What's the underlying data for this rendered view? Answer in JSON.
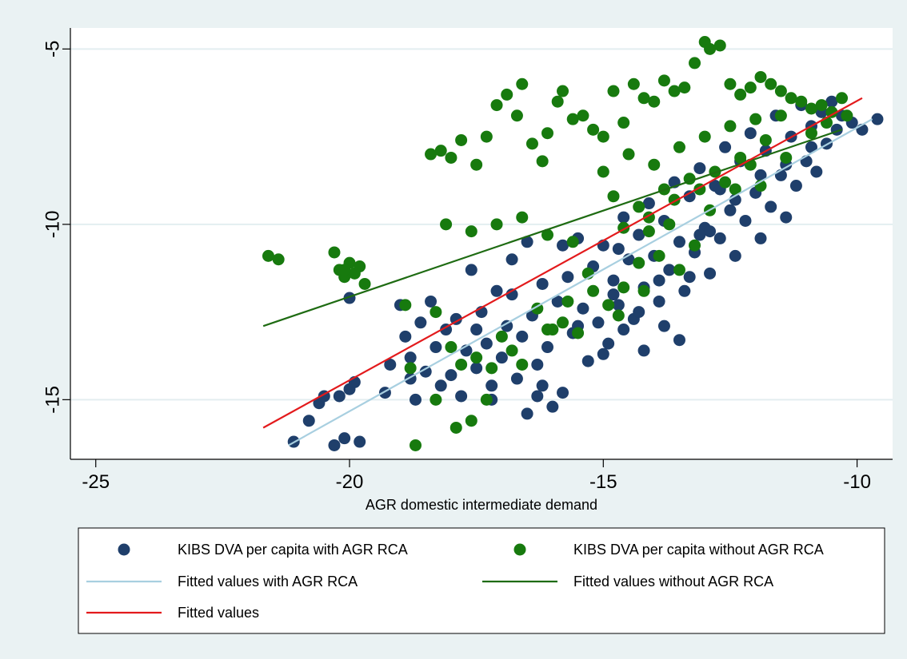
{
  "chart_data": {
    "type": "scatter",
    "title": "",
    "xlabel": "AGR domestic intermediate demand",
    "ylabel": "",
    "xlim": [
      -25.5,
      -9.3
    ],
    "ylim": [
      -16.7,
      -4.4
    ],
    "xticks": [
      -25,
      -20,
      -15,
      -10
    ],
    "yticks": [
      -5,
      -10,
      -15
    ],
    "x_tick_labels": [
      "-25",
      "-20",
      "-15",
      "-10"
    ],
    "y_tick_labels": [
      "-5",
      "-10",
      "-15"
    ],
    "grid": "horizontal",
    "legend_position": "bottom",
    "colors": {
      "with_rca": "#1f3f6b",
      "without_rca": "#177a0e",
      "fit_with": "#a8cfe0",
      "fit_without": "#1e6b12",
      "fit_all": "#e31a1c",
      "background": "#eaf2f3",
      "plot_background": "#ffffff",
      "gridline": "#e3eef0"
    },
    "series": [
      {
        "name": "KIBS DVA per capita with AGR RCA",
        "kind": "scatter",
        "color": "#1f3f6b",
        "points": [
          [
            -21.1,
            -16.2
          ],
          [
            -20.8,
            -15.6
          ],
          [
            -20.6,
            -15.1
          ],
          [
            -20.5,
            -14.9
          ],
          [
            -20.3,
            -16.3
          ],
          [
            -20.2,
            -14.9
          ],
          [
            -20.1,
            -16.1
          ],
          [
            -20.0,
            -14.7
          ],
          [
            -19.9,
            -14.5
          ],
          [
            -19.8,
            -16.2
          ],
          [
            -20.0,
            -12.1
          ],
          [
            -19.2,
            -14.0
          ],
          [
            -19.0,
            -12.3
          ],
          [
            -18.9,
            -13.2
          ],
          [
            -18.8,
            -13.8
          ],
          [
            -18.7,
            -15.0
          ],
          [
            -18.6,
            -12.8
          ],
          [
            -18.5,
            -14.2
          ],
          [
            -18.4,
            -12.2
          ],
          [
            -18.3,
            -13.5
          ],
          [
            -18.2,
            -14.6
          ],
          [
            -18.1,
            -13.0
          ],
          [
            -18.0,
            -14.3
          ],
          [
            -17.9,
            -12.7
          ],
          [
            -17.8,
            -14.9
          ],
          [
            -17.7,
            -13.6
          ],
          [
            -17.6,
            -11.3
          ],
          [
            -17.5,
            -14.1
          ],
          [
            -17.4,
            -12.5
          ],
          [
            -17.3,
            -13.4
          ],
          [
            -17.2,
            -14.6
          ],
          [
            -17.1,
            -11.9
          ],
          [
            -17.0,
            -13.8
          ],
          [
            -16.9,
            -12.9
          ],
          [
            -16.8,
            -11.0
          ],
          [
            -16.7,
            -14.4
          ],
          [
            -16.6,
            -13.2
          ],
          [
            -16.5,
            -10.5
          ],
          [
            -16.4,
            -12.6
          ],
          [
            -16.3,
            -14.0
          ],
          [
            -16.2,
            -11.7
          ],
          [
            -16.1,
            -13.5
          ],
          [
            -16.0,
            -15.2
          ],
          [
            -15.9,
            -12.2
          ],
          [
            -15.8,
            -14.8
          ],
          [
            -15.7,
            -11.5
          ],
          [
            -15.6,
            -13.1
          ],
          [
            -15.5,
            -10.4
          ],
          [
            -15.4,
            -12.4
          ],
          [
            -15.3,
            -13.9
          ],
          [
            -15.2,
            -11.2
          ],
          [
            -15.1,
            -12.8
          ],
          [
            -15.0,
            -10.6
          ],
          [
            -14.9,
            -13.4
          ],
          [
            -14.8,
            -11.6
          ],
          [
            -14.7,
            -12.3
          ],
          [
            -14.6,
            -9.8
          ],
          [
            -14.5,
            -11.0
          ],
          [
            -14.4,
            -12.7
          ],
          [
            -14.3,
            -10.3
          ],
          [
            -14.2,
            -11.8
          ],
          [
            -14.1,
            -9.4
          ],
          [
            -14.0,
            -10.9
          ],
          [
            -13.9,
            -12.2
          ],
          [
            -13.8,
            -9.9
          ],
          [
            -13.7,
            -11.3
          ],
          [
            -13.6,
            -8.8
          ],
          [
            -13.5,
            -10.5
          ],
          [
            -13.4,
            -11.9
          ],
          [
            -13.3,
            -9.2
          ],
          [
            -13.2,
            -10.8
          ],
          [
            -13.1,
            -8.4
          ],
          [
            -13.0,
            -10.1
          ],
          [
            -12.9,
            -11.4
          ],
          [
            -12.8,
            -8.9
          ],
          [
            -12.7,
            -10.4
          ],
          [
            -12.6,
            -7.8
          ],
          [
            -12.5,
            -9.6
          ],
          [
            -12.4,
            -10.9
          ],
          [
            -12.3,
            -8.2
          ],
          [
            -12.2,
            -9.9
          ],
          [
            -12.1,
            -7.4
          ],
          [
            -12.0,
            -9.1
          ],
          [
            -11.9,
            -10.4
          ],
          [
            -11.8,
            -7.9
          ],
          [
            -11.7,
            -9.5
          ],
          [
            -11.6,
            -6.9
          ],
          [
            -11.5,
            -8.6
          ],
          [
            -11.4,
            -9.8
          ],
          [
            -11.3,
            -7.5
          ],
          [
            -11.2,
            -8.9
          ],
          [
            -11.1,
            -6.6
          ],
          [
            -11.0,
            -8.2
          ],
          [
            -10.9,
            -7.2
          ],
          [
            -10.8,
            -8.5
          ],
          [
            -10.7,
            -6.8
          ],
          [
            -10.6,
            -7.7
          ],
          [
            -10.5,
            -6.5
          ],
          [
            -10.4,
            -7.3
          ],
          [
            -10.3,
            -6.9
          ],
          [
            -10.1,
            -7.1
          ],
          [
            -9.9,
            -7.3
          ],
          [
            -9.6,
            -7.0
          ],
          [
            -15.5,
            -12.9
          ],
          [
            -16.3,
            -14.9
          ],
          [
            -16.2,
            -14.6
          ],
          [
            -14.6,
            -13.0
          ],
          [
            -13.5,
            -13.3
          ],
          [
            -14.8,
            -12.0
          ],
          [
            -15.0,
            -13.7
          ],
          [
            -13.9,
            -11.6
          ],
          [
            -12.9,
            -10.2
          ],
          [
            -13.3,
            -11.5
          ],
          [
            -12.4,
            -9.3
          ],
          [
            -11.9,
            -8.6
          ],
          [
            -14.3,
            -12.5
          ],
          [
            -16.8,
            -12.0
          ],
          [
            -17.5,
            -13.0
          ],
          [
            -18.8,
            -14.4
          ],
          [
            -19.3,
            -14.8
          ],
          [
            -17.2,
            -15.0
          ],
          [
            -16.5,
            -15.4
          ],
          [
            -14.2,
            -13.6
          ],
          [
            -13.8,
            -12.9
          ],
          [
            -11.4,
            -8.3
          ],
          [
            -10.9,
            -7.8
          ],
          [
            -12.7,
            -9.0
          ],
          [
            -13.1,
            -10.3
          ],
          [
            -14.7,
            -10.7
          ],
          [
            -15.8,
            -10.6
          ]
        ]
      },
      {
        "name": "KIBS DVA per capita without AGR RCA",
        "kind": "scatter",
        "color": "#177a0e",
        "points": [
          [
            -21.6,
            -10.9
          ],
          [
            -21.4,
            -11.0
          ],
          [
            -20.3,
            -10.8
          ],
          [
            -20.2,
            -11.3
          ],
          [
            -20.1,
            -11.5
          ],
          [
            -20.0,
            -11.1
          ],
          [
            -19.9,
            -11.4
          ],
          [
            -19.8,
            -11.2
          ],
          [
            -19.7,
            -11.7
          ],
          [
            -20.1,
            -11.3
          ],
          [
            -18.9,
            -12.3
          ],
          [
            -18.7,
            -16.3
          ],
          [
            -18.4,
            -8.0
          ],
          [
            -18.2,
            -7.9
          ],
          [
            -18.0,
            -8.1
          ],
          [
            -17.8,
            -7.6
          ],
          [
            -17.5,
            -8.3
          ],
          [
            -17.3,
            -7.5
          ],
          [
            -17.1,
            -6.6
          ],
          [
            -16.9,
            -6.3
          ],
          [
            -16.7,
            -6.9
          ],
          [
            -16.6,
            -6.0
          ],
          [
            -16.4,
            -7.7
          ],
          [
            -16.2,
            -8.2
          ],
          [
            -16.1,
            -7.4
          ],
          [
            -15.9,
            -6.5
          ],
          [
            -15.8,
            -6.2
          ],
          [
            -15.6,
            -7.0
          ],
          [
            -15.4,
            -6.9
          ],
          [
            -15.2,
            -7.3
          ],
          [
            -15.0,
            -7.5
          ],
          [
            -14.8,
            -6.2
          ],
          [
            -14.6,
            -7.1
          ],
          [
            -14.4,
            -6.0
          ],
          [
            -14.2,
            -6.4
          ],
          [
            -14.0,
            -6.5
          ],
          [
            -13.8,
            -5.9
          ],
          [
            -13.6,
            -6.2
          ],
          [
            -13.4,
            -6.1
          ],
          [
            -13.2,
            -5.4
          ],
          [
            -13.0,
            -4.8
          ],
          [
            -12.9,
            -5.0
          ],
          [
            -12.7,
            -4.9
          ],
          [
            -12.5,
            -6.0
          ],
          [
            -12.3,
            -6.3
          ],
          [
            -12.1,
            -6.1
          ],
          [
            -11.9,
            -5.8
          ],
          [
            -11.7,
            -6.0
          ],
          [
            -11.5,
            -6.2
          ],
          [
            -11.3,
            -6.4
          ],
          [
            -11.1,
            -6.5
          ],
          [
            -10.9,
            -6.7
          ],
          [
            -10.7,
            -6.6
          ],
          [
            -10.5,
            -6.8
          ],
          [
            -10.3,
            -6.4
          ],
          [
            -15.0,
            -8.5
          ],
          [
            -14.5,
            -8.0
          ],
          [
            -14.0,
            -8.3
          ],
          [
            -13.5,
            -7.8
          ],
          [
            -13.0,
            -7.5
          ],
          [
            -12.5,
            -7.2
          ],
          [
            -12.0,
            -7.0
          ],
          [
            -11.5,
            -6.9
          ],
          [
            -14.8,
            -9.2
          ],
          [
            -14.3,
            -9.5
          ],
          [
            -13.8,
            -9.0
          ],
          [
            -13.3,
            -8.7
          ],
          [
            -12.8,
            -8.5
          ],
          [
            -12.3,
            -8.1
          ],
          [
            -11.8,
            -7.6
          ],
          [
            -14.6,
            -10.1
          ],
          [
            -14.1,
            -9.8
          ],
          [
            -13.6,
            -9.3
          ],
          [
            -13.1,
            -9.0
          ],
          [
            -12.6,
            -8.8
          ],
          [
            -12.1,
            -8.3
          ],
          [
            -15.6,
            -10.5
          ],
          [
            -16.1,
            -10.3
          ],
          [
            -16.6,
            -9.8
          ],
          [
            -17.1,
            -10.0
          ],
          [
            -17.6,
            -10.2
          ],
          [
            -18.1,
            -10.0
          ],
          [
            -18.3,
            -12.5
          ],
          [
            -18.0,
            -13.5
          ],
          [
            -17.8,
            -14.0
          ],
          [
            -17.5,
            -13.8
          ],
          [
            -17.2,
            -14.1
          ],
          [
            -17.0,
            -13.2
          ],
          [
            -16.8,
            -13.6
          ],
          [
            -16.3,
            -12.4
          ],
          [
            -16.0,
            -13.0
          ],
          [
            -15.7,
            -12.2
          ],
          [
            -15.5,
            -13.1
          ],
          [
            -15.2,
            -11.9
          ],
          [
            -14.9,
            -12.3
          ],
          [
            -14.6,
            -11.8
          ],
          [
            -14.3,
            -11.1
          ],
          [
            -13.9,
            -10.9
          ],
          [
            -13.5,
            -11.3
          ],
          [
            -13.2,
            -10.6
          ],
          [
            -18.8,
            -14.1
          ],
          [
            -18.3,
            -15.0
          ],
          [
            -17.9,
            -15.8
          ],
          [
            -17.6,
            -15.6
          ],
          [
            -17.3,
            -15.0
          ],
          [
            -16.6,
            -14.0
          ],
          [
            -16.1,
            -13.0
          ],
          [
            -15.8,
            -12.8
          ],
          [
            -14.7,
            -12.6
          ],
          [
            -14.2,
            -11.9
          ],
          [
            -15.3,
            -11.4
          ],
          [
            -14.1,
            -10.2
          ],
          [
            -13.7,
            -10.0
          ],
          [
            -12.9,
            -9.6
          ],
          [
            -12.4,
            -9.0
          ],
          [
            -11.9,
            -8.9
          ],
          [
            -11.4,
            -8.1
          ],
          [
            -10.9,
            -7.4
          ],
          [
            -10.6,
            -7.1
          ],
          [
            -10.2,
            -6.9
          ]
        ]
      },
      {
        "name": "Fitted values with AGR RCA",
        "kind": "line",
        "color": "#a8cfe0",
        "points": [
          [
            -21.2,
            -16.3
          ],
          [
            -9.7,
            -7.0
          ]
        ]
      },
      {
        "name": "Fitted values without AGR RCA",
        "kind": "line",
        "color": "#1e6b12",
        "points": [
          [
            -21.7,
            -12.9
          ],
          [
            -10.3,
            -7.3
          ]
        ]
      },
      {
        "name": "Fitted values",
        "kind": "line",
        "color": "#e31a1c",
        "points": [
          [
            -21.7,
            -15.8
          ],
          [
            -9.9,
            -6.4
          ]
        ]
      }
    ]
  }
}
